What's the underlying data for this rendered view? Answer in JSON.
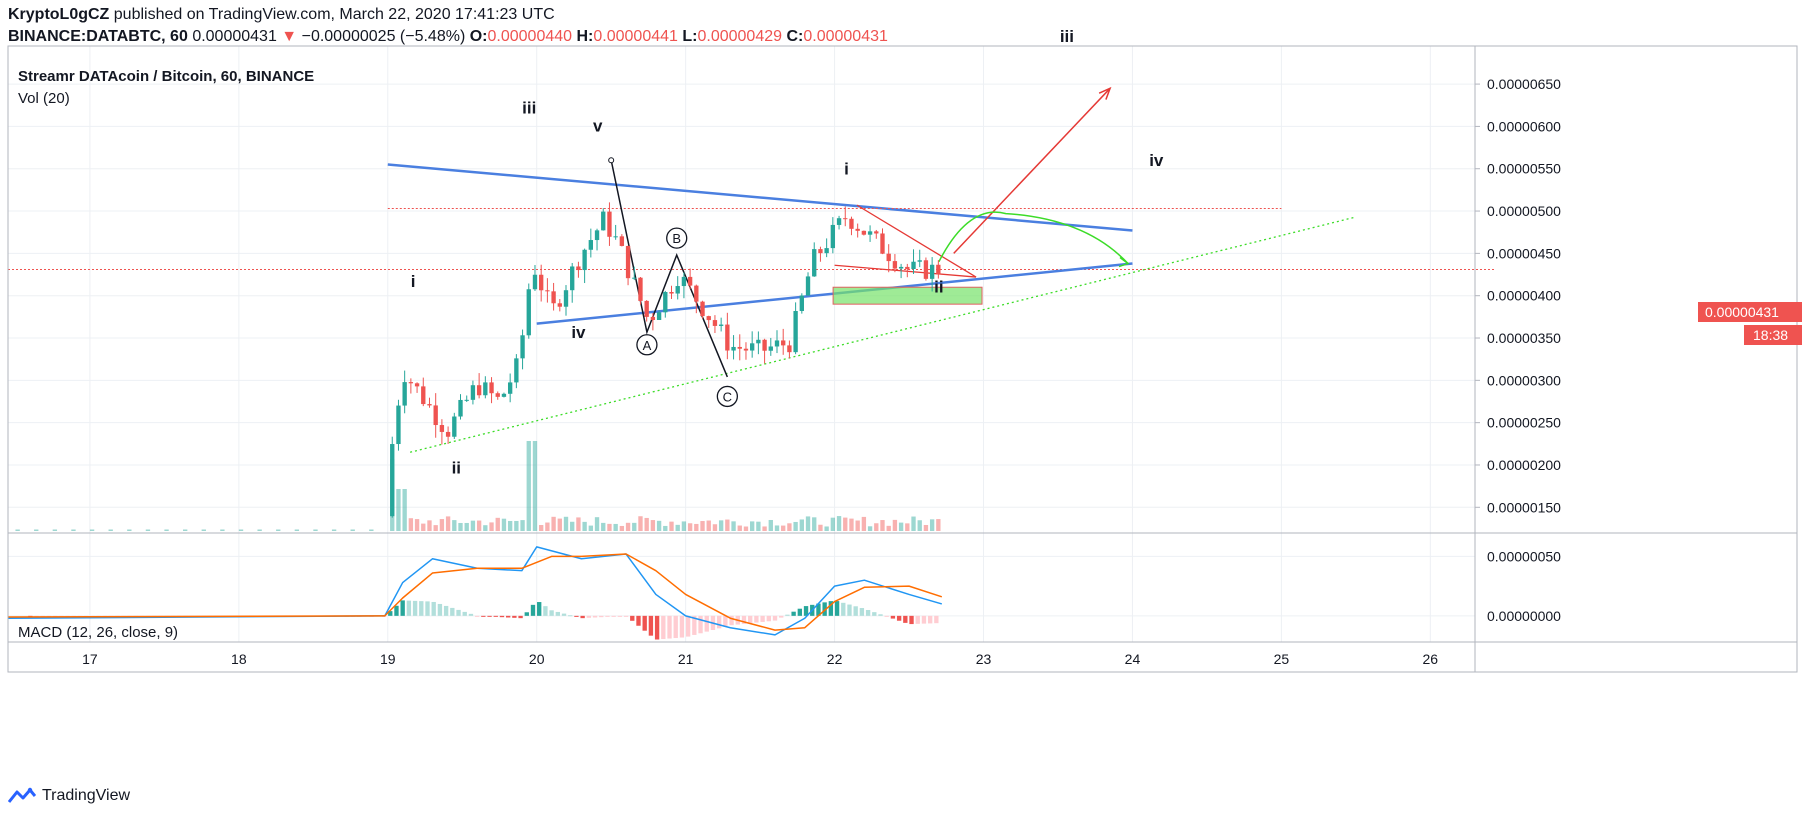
{
  "header": {
    "author": "KryptoL0gCZ",
    "published_text": "published on TradingView.com, March 22, 2020 17:41:23 UTC",
    "symbol": "BINANCE:DATABTC, 60",
    "last": "0.00000431",
    "change_arrow": "▼",
    "change": "−0.00000025 (−5.48%)",
    "o_label": "O:",
    "o_value": "0.00000440",
    "h_label": "H:",
    "h_value": "0.00000441",
    "l_label": "L:",
    "l_value": "0.00000429",
    "c_label": "C:",
    "c_value": "0.00000431"
  },
  "panes": {
    "main_title": "Streamr DATAcoin / Bitcoin, 60, BINANCE",
    "volume_title": "Vol (20)",
    "macd_title": "MACD (12, 26, close, 9)"
  },
  "price_tag": {
    "value": "0.00000431",
    "countdown": "18:38"
  },
  "footer": {
    "brand": "TradingView",
    "logo_icon": "tradingview-logo-icon"
  },
  "colors": {
    "up": "#26a69a",
    "down": "#ef5350",
    "trendline": "#4a7fe0",
    "target": "#e53935",
    "projection": "#3cdc28"
  },
  "chart_data": [
    {
      "type": "candlestick",
      "title": "Streamr DATAcoin / Bitcoin, 60, BINANCE",
      "x_ticks": [
        "17",
        "18",
        "19",
        "20",
        "21",
        "22",
        "23",
        "24",
        "25",
        "26"
      ],
      "y_ticks": [
        "0.00000150",
        "0.00000200",
        "0.00000250",
        "0.00000300",
        "0.00000350",
        "0.00000400",
        "0.00000450",
        "0.00000500",
        "0.00000550",
        "0.00000600",
        "0.00000650"
      ],
      "ylim": [
        1.22e-06,
        6.95e-06
      ],
      "xlim": [
        16.45,
        26.3
      ],
      "grid": true,
      "current_price": 4.31e-06,
      "ohlc_anchors": [
        {
          "x": 19.03,
          "price": 2.25e-06
        },
        {
          "x": 19.1,
          "price": 3.12e-06
        },
        {
          "x": 19.4,
          "price": 2.4e-06
        },
        {
          "x": 19.6,
          "price": 2.95e-06
        },
        {
          "x": 19.75,
          "price": 2.75e-06
        },
        {
          "x": 19.88,
          "price": 3.2e-06
        },
        {
          "x": 19.97,
          "price": 4.4e-06
        },
        {
          "x": 20.1,
          "price": 3.8e-06
        },
        {
          "x": 20.3,
          "price": 4.5e-06
        },
        {
          "x": 20.45,
          "price": 4.9e-06
        },
        {
          "x": 20.55,
          "price": 4.6e-06
        },
        {
          "x": 20.75,
          "price": 3.7e-06
        },
        {
          "x": 20.95,
          "price": 4.25e-06
        },
        {
          "x": 21.1,
          "price": 3.9e-06
        },
        {
          "x": 21.3,
          "price": 3.4e-06
        },
        {
          "x": 21.5,
          "price": 3.35e-06
        },
        {
          "x": 21.7,
          "price": 3.45e-06
        },
        {
          "x": 21.85,
          "price": 4.4e-06
        },
        {
          "x": 22.08,
          "price": 4.95e-06
        },
        {
          "x": 22.3,
          "price": 4.6e-06
        },
        {
          "x": 22.5,
          "price": 4.3e-06
        },
        {
          "x": 22.7,
          "price": 4.31e-06
        }
      ],
      "annotations": [
        {
          "text": "i",
          "x": 19.17,
          "price": 4.1e-06
        },
        {
          "text": "ii",
          "x": 19.46,
          "price": 1.9e-06
        },
        {
          "text": "iii",
          "x": 19.95,
          "price": 6.15e-06
        },
        {
          "text": "iv",
          "x": 20.28,
          "price": 3.5e-06
        },
        {
          "text": "v",
          "x": 20.41,
          "price": 5.94e-06
        },
        {
          "text": "A",
          "x": 20.74,
          "price": 3.42e-06,
          "circled": true
        },
        {
          "text": "B",
          "x": 20.94,
          "price": 4.68e-06,
          "circled": true
        },
        {
          "text": "C",
          "x": 21.28,
          "price": 2.81e-06,
          "circled": true
        },
        {
          "text": "i",
          "x": 22.08,
          "price": 5.43e-06
        },
        {
          "text": "ii",
          "x": 22.7,
          "price": 4.04e-06
        },
        {
          "text": "iii",
          "x": 23.56,
          "price": 7e-06
        },
        {
          "text": "iv",
          "x": 24.16,
          "price": 5.53e-06
        }
      ],
      "drawings": [
        {
          "kind": "trendline-upper",
          "from": [
            19.0,
            5.55e-06
          ],
          "to": [
            24.0,
            4.77e-06
          ]
        },
        {
          "kind": "trendline-lower",
          "from": [
            20.0,
            3.67e-06
          ],
          "to": [
            24.0,
            4.38e-06
          ]
        },
        {
          "kind": "support-dotted",
          "from": [
            19.15,
            2.15e-06
          ],
          "to": [
            25.5,
            4.93e-06
          ]
        },
        {
          "kind": "resistance-dotted",
          "from": [
            19.0,
            5.03e-06
          ],
          "to": [
            25.0,
            5.03e-06
          ]
        },
        {
          "kind": "abc-path",
          "points": [
            [
              20.5,
              5.6e-06
            ],
            [
              20.74,
              3.57e-06
            ],
            [
              20.94,
              4.48e-06
            ],
            [
              21.28,
              3.04e-06
            ]
          ]
        },
        {
          "kind": "wedge",
          "points": [
            [
              22.15,
              5.07e-06
            ],
            [
              22.95,
              4.22e-06
            ],
            [
              22.0,
              4.36e-06
            ]
          ]
        },
        {
          "kind": "target-arrow",
          "from": [
            22.8,
            4.5e-06
          ],
          "to": [
            23.85,
            6.45e-06
          ]
        },
        {
          "kind": "projection-arc",
          "from": [
            22.7,
            4.4e-06
          ],
          "peak": [
            23.15,
            4.97e-06
          ],
          "to": [
            23.97,
            4.38e-06
          ]
        },
        {
          "kind": "green-zone",
          "x": [
            21.99,
            22.99
          ],
          "price": [
            3.9e-06,
            4.1e-06
          ]
        }
      ]
    },
    {
      "type": "bar",
      "title": "Vol (20)",
      "note": "volume histogram overlaid at bottom of price pane"
    },
    {
      "type": "line",
      "title": "MACD (12, 26, close, 9)",
      "y_ticks": [
        "0.00000000",
        "0.00000050"
      ],
      "ylim": [
        -2.2e-07,
        6.8e-07
      ],
      "series": [
        {
          "role": "macd",
          "color": "#2196f3",
          "points": [
            [
              16.45,
              -2e-08
            ],
            [
              18.98,
              0.0
            ],
            [
              19.1,
              2.8e-07
            ],
            [
              19.3,
              4.8e-07
            ],
            [
              19.6,
              4e-07
            ],
            [
              19.9,
              3.8e-07
            ],
            [
              20.0,
              5.8e-07
            ],
            [
              20.3,
              4.8e-07
            ],
            [
              20.6,
              5.2e-07
            ],
            [
              20.8,
              1.8e-07
            ],
            [
              21.0,
              0.0
            ],
            [
              21.3,
              -1e-07
            ],
            [
              21.6,
              -1.6e-07
            ],
            [
              21.8,
              -2e-08
            ],
            [
              22.0,
              2.5e-07
            ],
            [
              22.2,
              3e-07
            ],
            [
              22.5,
              1.8e-07
            ],
            [
              22.72,
              1e-07
            ]
          ]
        },
        {
          "role": "signal",
          "color": "#ff6d00",
          "points": [
            [
              16.45,
              -1e-08
            ],
            [
              18.98,
              0.0
            ],
            [
              19.1,
              1.5e-07
            ],
            [
              19.3,
              3.6e-07
            ],
            [
              19.6,
              4e-07
            ],
            [
              19.9,
              4e-07
            ],
            [
              20.1,
              5e-07
            ],
            [
              20.3,
              5e-07
            ],
            [
              20.6,
              5.2e-07
            ],
            [
              20.8,
              3.8e-07
            ],
            [
              21.0,
              1.8e-07
            ],
            [
              21.3,
              -2e-08
            ],
            [
              21.6,
              -1.2e-07
            ],
            [
              21.8,
              -1e-07
            ],
            [
              22.0,
              1.2e-07
            ],
            [
              22.2,
              2.4e-07
            ],
            [
              22.5,
              2.5e-07
            ],
            [
              22.72,
              1.6e-07
            ]
          ]
        }
      ]
    }
  ]
}
